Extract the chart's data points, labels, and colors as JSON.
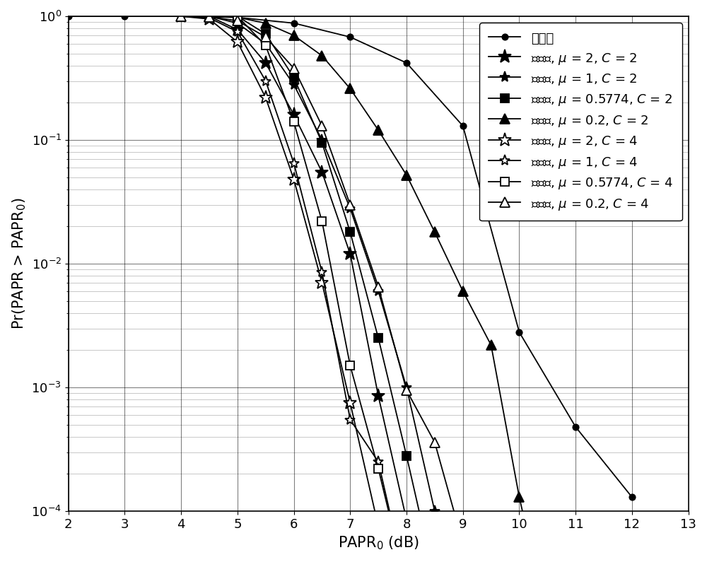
{
  "title": "",
  "xlabel": "PAPR$_0$ (dB)",
  "ylabel": "Pr(PAPR > PAPR$_0$)",
  "xlim": [
    2,
    13
  ],
  "ylim_log": [
    -4,
    0
  ],
  "series": [
    {
      "label": "原系统",
      "color": "#000000",
      "linestyle": "-",
      "marker": "o",
      "markersize": 6,
      "markerfacecolor": "#000000",
      "markeredgecolor": "#000000",
      "x": [
        2,
        3,
        4,
        5,
        6,
        7,
        8,
        9,
        10,
        11,
        12
      ],
      "y": [
        1.0,
        1.0,
        1.0,
        0.98,
        0.88,
        0.68,
        0.42,
        0.13,
        0.0028,
        0.00048,
        0.00013
      ]
    },
    {
      "label": "本发明, $\\mu$ = 2, $C$ = 2",
      "color": "#000000",
      "linestyle": "-",
      "marker": "*",
      "markersize": 14,
      "markerfacecolor": "#000000",
      "markeredgecolor": "#000000",
      "x": [
        4.5,
        5.0,
        5.5,
        6.0,
        6.5,
        7.0,
        7.5,
        8.0,
        8.5
      ],
      "y": [
        1.0,
        0.78,
        0.42,
        0.16,
        0.055,
        0.012,
        0.00085,
        8.5e-05,
        8.5e-06
      ]
    },
    {
      "label": "本发明, $\\mu$ = 1, $C$ = 2",
      "color": "#000000",
      "linestyle": "-",
      "marker": "*",
      "markersize": 11,
      "markerfacecolor": "#000000",
      "markeredgecolor": "#000000",
      "x": [
        4.5,
        5.0,
        5.5,
        6.0,
        6.5,
        7.0,
        7.5,
        8.0,
        8.5,
        9.0
      ],
      "y": [
        1.0,
        0.88,
        0.6,
        0.28,
        0.1,
        0.028,
        0.006,
        0.001,
        0.0001,
        1e-05
      ]
    },
    {
      "label": "本发明, $\\mu$ = 0.5774, $C$ = 2",
      "color": "#000000",
      "linestyle": "-",
      "marker": "s",
      "markersize": 8,
      "markerfacecolor": "#000000",
      "markeredgecolor": "#000000",
      "x": [
        5.0,
        5.5,
        6.0,
        6.5,
        7.0,
        7.5,
        8.0,
        8.5,
        9.0
      ],
      "y": [
        1.0,
        0.72,
        0.32,
        0.095,
        0.018,
        0.0025,
        0.00028,
        2.8e-05,
        2.8e-06
      ]
    },
    {
      "label": "本发明, $\\mu$ = 0.2, $C$ = 2",
      "color": "#000000",
      "linestyle": "-",
      "marker": "^",
      "markersize": 10,
      "markerfacecolor": "#000000",
      "markeredgecolor": "#000000",
      "x": [
        4.5,
        5.0,
        5.5,
        6.0,
        6.5,
        7.0,
        7.5,
        8.0,
        8.5,
        9.0,
        9.5,
        10.0,
        10.5
      ],
      "y": [
        1.0,
        0.98,
        0.88,
        0.7,
        0.48,
        0.26,
        0.12,
        0.052,
        0.018,
        0.006,
        0.0022,
        0.00013,
        1.3e-05
      ]
    },
    {
      "label": "本发明, $\\mu$ = 2, $C$ = 4",
      "color": "#000000",
      "linestyle": "-",
      "marker": "*",
      "markersize": 14,
      "markerfacecolor": "white",
      "markeredgecolor": "#000000",
      "x": [
        4.0,
        4.5,
        5.0,
        5.5,
        6.0,
        6.5,
        7.0,
        7.5
      ],
      "y": [
        1.0,
        0.95,
        0.62,
        0.22,
        0.048,
        0.007,
        0.00075,
        7.5e-05
      ]
    },
    {
      "label": "本发明, $\\mu$ = 1, $C$ = 4",
      "color": "#000000",
      "linestyle": "-",
      "marker": "*",
      "markersize": 11,
      "markerfacecolor": "white",
      "markeredgecolor": "#000000",
      "x": [
        4.0,
        4.5,
        5.0,
        5.5,
        6.0,
        6.5,
        7.0,
        7.5,
        8.0
      ],
      "y": [
        1.0,
        0.97,
        0.75,
        0.3,
        0.065,
        0.0085,
        0.00055,
        0.00025,
        2.5e-05
      ]
    },
    {
      "label": "本发明, $\\mu$ = 0.5774, $C$ = 4",
      "color": "#000000",
      "linestyle": "-",
      "marker": "s",
      "markersize": 8,
      "markerfacecolor": "white",
      "markeredgecolor": "#000000",
      "x": [
        5.0,
        5.5,
        6.0,
        6.5,
        7.0,
        7.5,
        8.0,
        8.5,
        9.0
      ],
      "y": [
        1.0,
        0.58,
        0.14,
        0.022,
        0.0015,
        0.00022,
        2.5e-05,
        7.5e-06,
        1e-06
      ]
    },
    {
      "label": "本发明, $\\mu$ = 0.2, $C$ = 4",
      "color": "#000000",
      "linestyle": "-",
      "marker": "^",
      "markersize": 10,
      "markerfacecolor": "white",
      "markeredgecolor": "#000000",
      "x": [
        4.0,
        4.5,
        5.0,
        5.5,
        6.0,
        6.5,
        7.0,
        7.5,
        8.0,
        8.5,
        9.0,
        9.5
      ],
      "y": [
        1.0,
        0.99,
        0.92,
        0.68,
        0.38,
        0.13,
        0.03,
        0.0065,
        0.00095,
        0.00036,
        5.5e-05,
        5.5e-06
      ]
    }
  ],
  "legend_fontsize": 13,
  "axis_fontsize": 15,
  "tick_fontsize": 13,
  "background_color": "white",
  "grid_color": "#000000",
  "grid_alpha": 0.5
}
